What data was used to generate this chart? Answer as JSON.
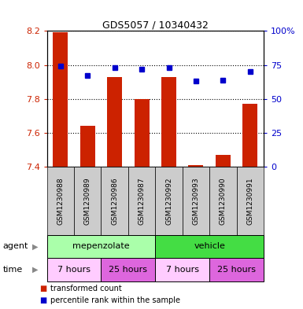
{
  "title": "GDS5057 / 10340432",
  "samples": [
    "GSM1230988",
    "GSM1230989",
    "GSM1230986",
    "GSM1230987",
    "GSM1230992",
    "GSM1230993",
    "GSM1230990",
    "GSM1230991"
  ],
  "bar_values": [
    8.19,
    7.64,
    7.93,
    7.8,
    7.93,
    7.41,
    7.47,
    7.77
  ],
  "bar_base": 7.4,
  "dot_values": [
    74,
    67,
    73,
    72,
    73,
    63,
    64,
    70
  ],
  "ylim_left": [
    7.4,
    8.2
  ],
  "ylim_right": [
    0,
    100
  ],
  "yticks_left": [
    7.4,
    7.6,
    7.8,
    8.0,
    8.2
  ],
  "yticks_right": [
    0,
    25,
    50,
    75,
    100
  ],
  "bar_color": "#cc2200",
  "dot_color": "#0000cc",
  "agent_groups": [
    {
      "label": "mepenzolate",
      "start": 0,
      "end": 4,
      "color": "#aaffaa"
    },
    {
      "label": "vehicle",
      "start": 4,
      "end": 8,
      "color": "#44dd44"
    }
  ],
  "time_groups": [
    {
      "label": "7 hours",
      "start": 0,
      "end": 2,
      "color": "#ffccff"
    },
    {
      "label": "25 hours",
      "start": 2,
      "end": 4,
      "color": "#dd66dd"
    },
    {
      "label": "7 hours",
      "start": 4,
      "end": 6,
      "color": "#ffccff"
    },
    {
      "label": "25 hours",
      "start": 6,
      "end": 8,
      "color": "#dd66dd"
    }
  ],
  "legend_bar_label": "transformed count",
  "legend_dot_label": "percentile rank within the sample",
  "agent_label": "agent",
  "time_label": "time",
  "bg_color": "#ffffff",
  "tick_area_color": "#cccccc",
  "right_tick_labels": [
    "0",
    "25",
    "50",
    "75",
    "100%"
  ]
}
